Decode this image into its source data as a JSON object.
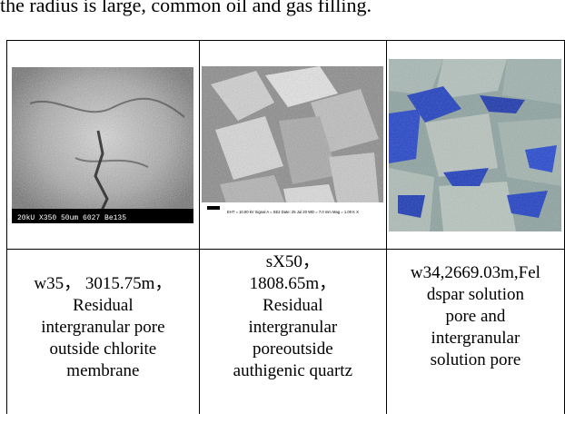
{
  "header_text": "the radius is large, common oil and gas filling.",
  "figures": [
    {
      "image_type": "sem-micrograph",
      "sem_info": "20kU   X350   50um  6027  Be135",
      "caption_lines": [
        "w35， 3015.75m，",
        "Residual",
        "intergranular pore",
        "outside chlorite",
        "membrane"
      ]
    },
    {
      "image_type": "sem-micrograph",
      "sem_info": "EHT = 10.00 kV   Signal A = SE2   Date: 25 Jul 20   WD = 7.0 mm   Mag = 1.00 K X",
      "caption_lines": [
        "sX50，",
        "1808.65m，",
        "Residual",
        "intergranular",
        "poreoutside",
        "authigenic quartz"
      ]
    },
    {
      "image_type": "thin-section-micrograph",
      "caption_lines": [
        "w34,2669.03m,Fel",
        "dspar solution",
        "pore and",
        "intergranular",
        "solution pore"
      ]
    }
  ]
}
